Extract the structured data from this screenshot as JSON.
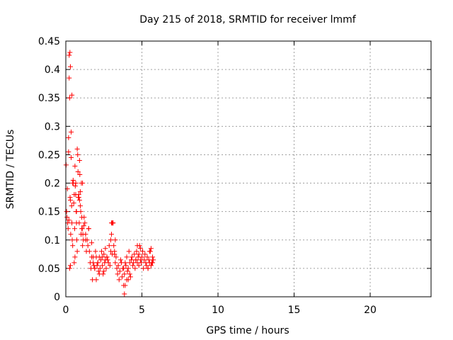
{
  "chart_data": {
    "type": "scatter",
    "title": "Day 215 of 2018, SRMTID for receiver lmmf",
    "xlabel": "GPS time / hours",
    "ylabel": "SRMTID / TECUs",
    "xlim": [
      0,
      24
    ],
    "ylim": [
      0,
      0.45
    ],
    "xticks": [
      0,
      5,
      10,
      15,
      20
    ],
    "xtick_labels": [
      "0",
      "5",
      "10",
      "15",
      "20"
    ],
    "yticks": [
      0,
      0.05,
      0.1,
      0.15,
      0.2,
      0.25,
      0.3,
      0.35,
      0.4,
      0.45
    ],
    "ytick_labels": [
      "0",
      "0.05",
      "0.1",
      "0.15",
      "0.2",
      "0.25",
      "0.3",
      "0.35",
      "0.4",
      "0.45"
    ],
    "grid": true,
    "marker": "plus",
    "color": "#ff0000",
    "series": [
      {
        "name": "SRMTID",
        "x": [
          0.02,
          0.05,
          0.08,
          0.1,
          0.12,
          0.15,
          0.18,
          0.2,
          0.22,
          0.25,
          0.28,
          0.3,
          0.32,
          0.35,
          0.38,
          0.4,
          0.42,
          0.45,
          0.48,
          0.5,
          0.52,
          0.55,
          0.58,
          0.6,
          0.62,
          0.65,
          0.68,
          0.7,
          0.72,
          0.75,
          0.78,
          0.8,
          0.82,
          0.85,
          0.88,
          0.9,
          0.92,
          0.95,
          0.98,
          1.0,
          1.02,
          1.05,
          1.08,
          1.1,
          1.12,
          1.15,
          1.18,
          1.2,
          1.25,
          1.3,
          1.35,
          1.4,
          1.45,
          1.5,
          1.55,
          1.6,
          1.65,
          1.7,
          1.75,
          1.8,
          1.85,
          1.9,
          1.95,
          2.0,
          2.05,
          2.1,
          2.15,
          2.2,
          2.25,
          2.3,
          2.35,
          2.4,
          2.45,
          2.5,
          2.55,
          2.6,
          2.65,
          2.7,
          2.75,
          2.8,
          2.85,
          2.9,
          2.95,
          3.0,
          3.05,
          3.1,
          3.15,
          3.2,
          3.25,
          3.3,
          3.35,
          3.4,
          3.45,
          3.5,
          3.55,
          3.6,
          3.65,
          3.7,
          3.75,
          3.8,
          3.85,
          3.9,
          3.95,
          4.0,
          4.05,
          4.1,
          4.15,
          4.2,
          4.25,
          4.3,
          4.35,
          4.4,
          4.45,
          4.5,
          4.55,
          4.6,
          4.65,
          4.7,
          4.75,
          4.8,
          4.85,
          4.9,
          4.95,
          5.0,
          5.05,
          5.1,
          5.15,
          5.2,
          5.25,
          5.3,
          5.35,
          5.4,
          5.45,
          5.5,
          5.55,
          5.6,
          5.65,
          5.7,
          5.75,
          0.25,
          0.27,
          0.3,
          0.22,
          0.18,
          0.35,
          0.4,
          0.45,
          0.85,
          0.9,
          0.95,
          1.05,
          1.1,
          0.6,
          0.65,
          0.7,
          3.0,
          3.1,
          3.05,
          2.95,
          3.2,
          3.25,
          1.7,
          1.8,
          1.9,
          2.0,
          2.1,
          2.2,
          3.8,
          3.85,
          3.9,
          4.0,
          4.1,
          4.2,
          5.4,
          5.5,
          5.6,
          5.7,
          4.6,
          4.7,
          4.8,
          4.9,
          2.4,
          2.5,
          2.6,
          2.7,
          0.3,
          0.55,
          0.75,
          1.3,
          1.5
        ],
        "y": [
          0.232,
          0.15,
          0.14,
          0.19,
          0.13,
          0.12,
          0.255,
          0.135,
          0.425,
          0.35,
          0.175,
          0.17,
          0.11,
          0.245,
          0.16,
          0.13,
          0.1,
          0.09,
          0.205,
          0.2,
          0.165,
          0.18,
          0.12,
          0.07,
          0.195,
          0.18,
          0.15,
          0.13,
          0.1,
          0.26,
          0.25,
          0.22,
          0.175,
          0.18,
          0.13,
          0.24,
          0.215,
          0.185,
          0.15,
          0.11,
          0.2,
          0.14,
          0.12,
          0.09,
          0.11,
          0.1,
          0.125,
          0.14,
          0.13,
          0.11,
          0.08,
          0.1,
          0.09,
          0.12,
          0.08,
          0.06,
          0.05,
          0.07,
          0.03,
          0.06,
          0.055,
          0.05,
          0.08,
          0.07,
          0.055,
          0.06,
          0.045,
          0.07,
          0.05,
          0.065,
          0.08,
          0.055,
          0.04,
          0.075,
          0.06,
          0.085,
          0.05,
          0.07,
          0.065,
          0.06,
          0.09,
          0.055,
          0.1,
          0.11,
          0.075,
          0.13,
          0.09,
          0.08,
          0.06,
          0.07,
          0.05,
          0.04,
          0.055,
          0.03,
          0.045,
          0.065,
          0.06,
          0.035,
          0.05,
          0.02,
          0.04,
          0.06,
          0.055,
          0.07,
          0.045,
          0.05,
          0.08,
          0.06,
          0.035,
          0.065,
          0.07,
          0.055,
          0.06,
          0.075,
          0.05,
          0.065,
          0.08,
          0.06,
          0.07,
          0.055,
          0.09,
          0.065,
          0.06,
          0.07,
          0.08,
          0.05,
          0.065,
          0.075,
          0.06,
          0.055,
          0.07,
          0.05,
          0.065,
          0.06,
          0.08,
          0.055,
          0.06,
          0.07,
          0.065,
          0.05,
          0.43,
          0.405,
          0.385,
          0.28,
          0.29,
          0.355,
          0.2,
          0.175,
          0.17,
          0.16,
          0.12,
          0.2,
          0.23,
          0.2,
          0.15,
          0.13,
          0.13,
          0.13,
          0.08,
          0.075,
          0.1,
          0.095,
          0.07,
          0.05,
          0.03,
          0.06,
          0.04,
          0.05,
          0.005,
          0.02,
          0.03,
          0.03,
          0.04,
          0.05,
          0.08,
          0.085,
          0.06,
          0.065,
          0.09,
          0.075,
          0.085,
          0.07,
          0.045,
          0.065,
          0.07,
          0.055,
          0.06,
          0.08,
          0.1,
          0.12
        ]
      }
    ]
  }
}
